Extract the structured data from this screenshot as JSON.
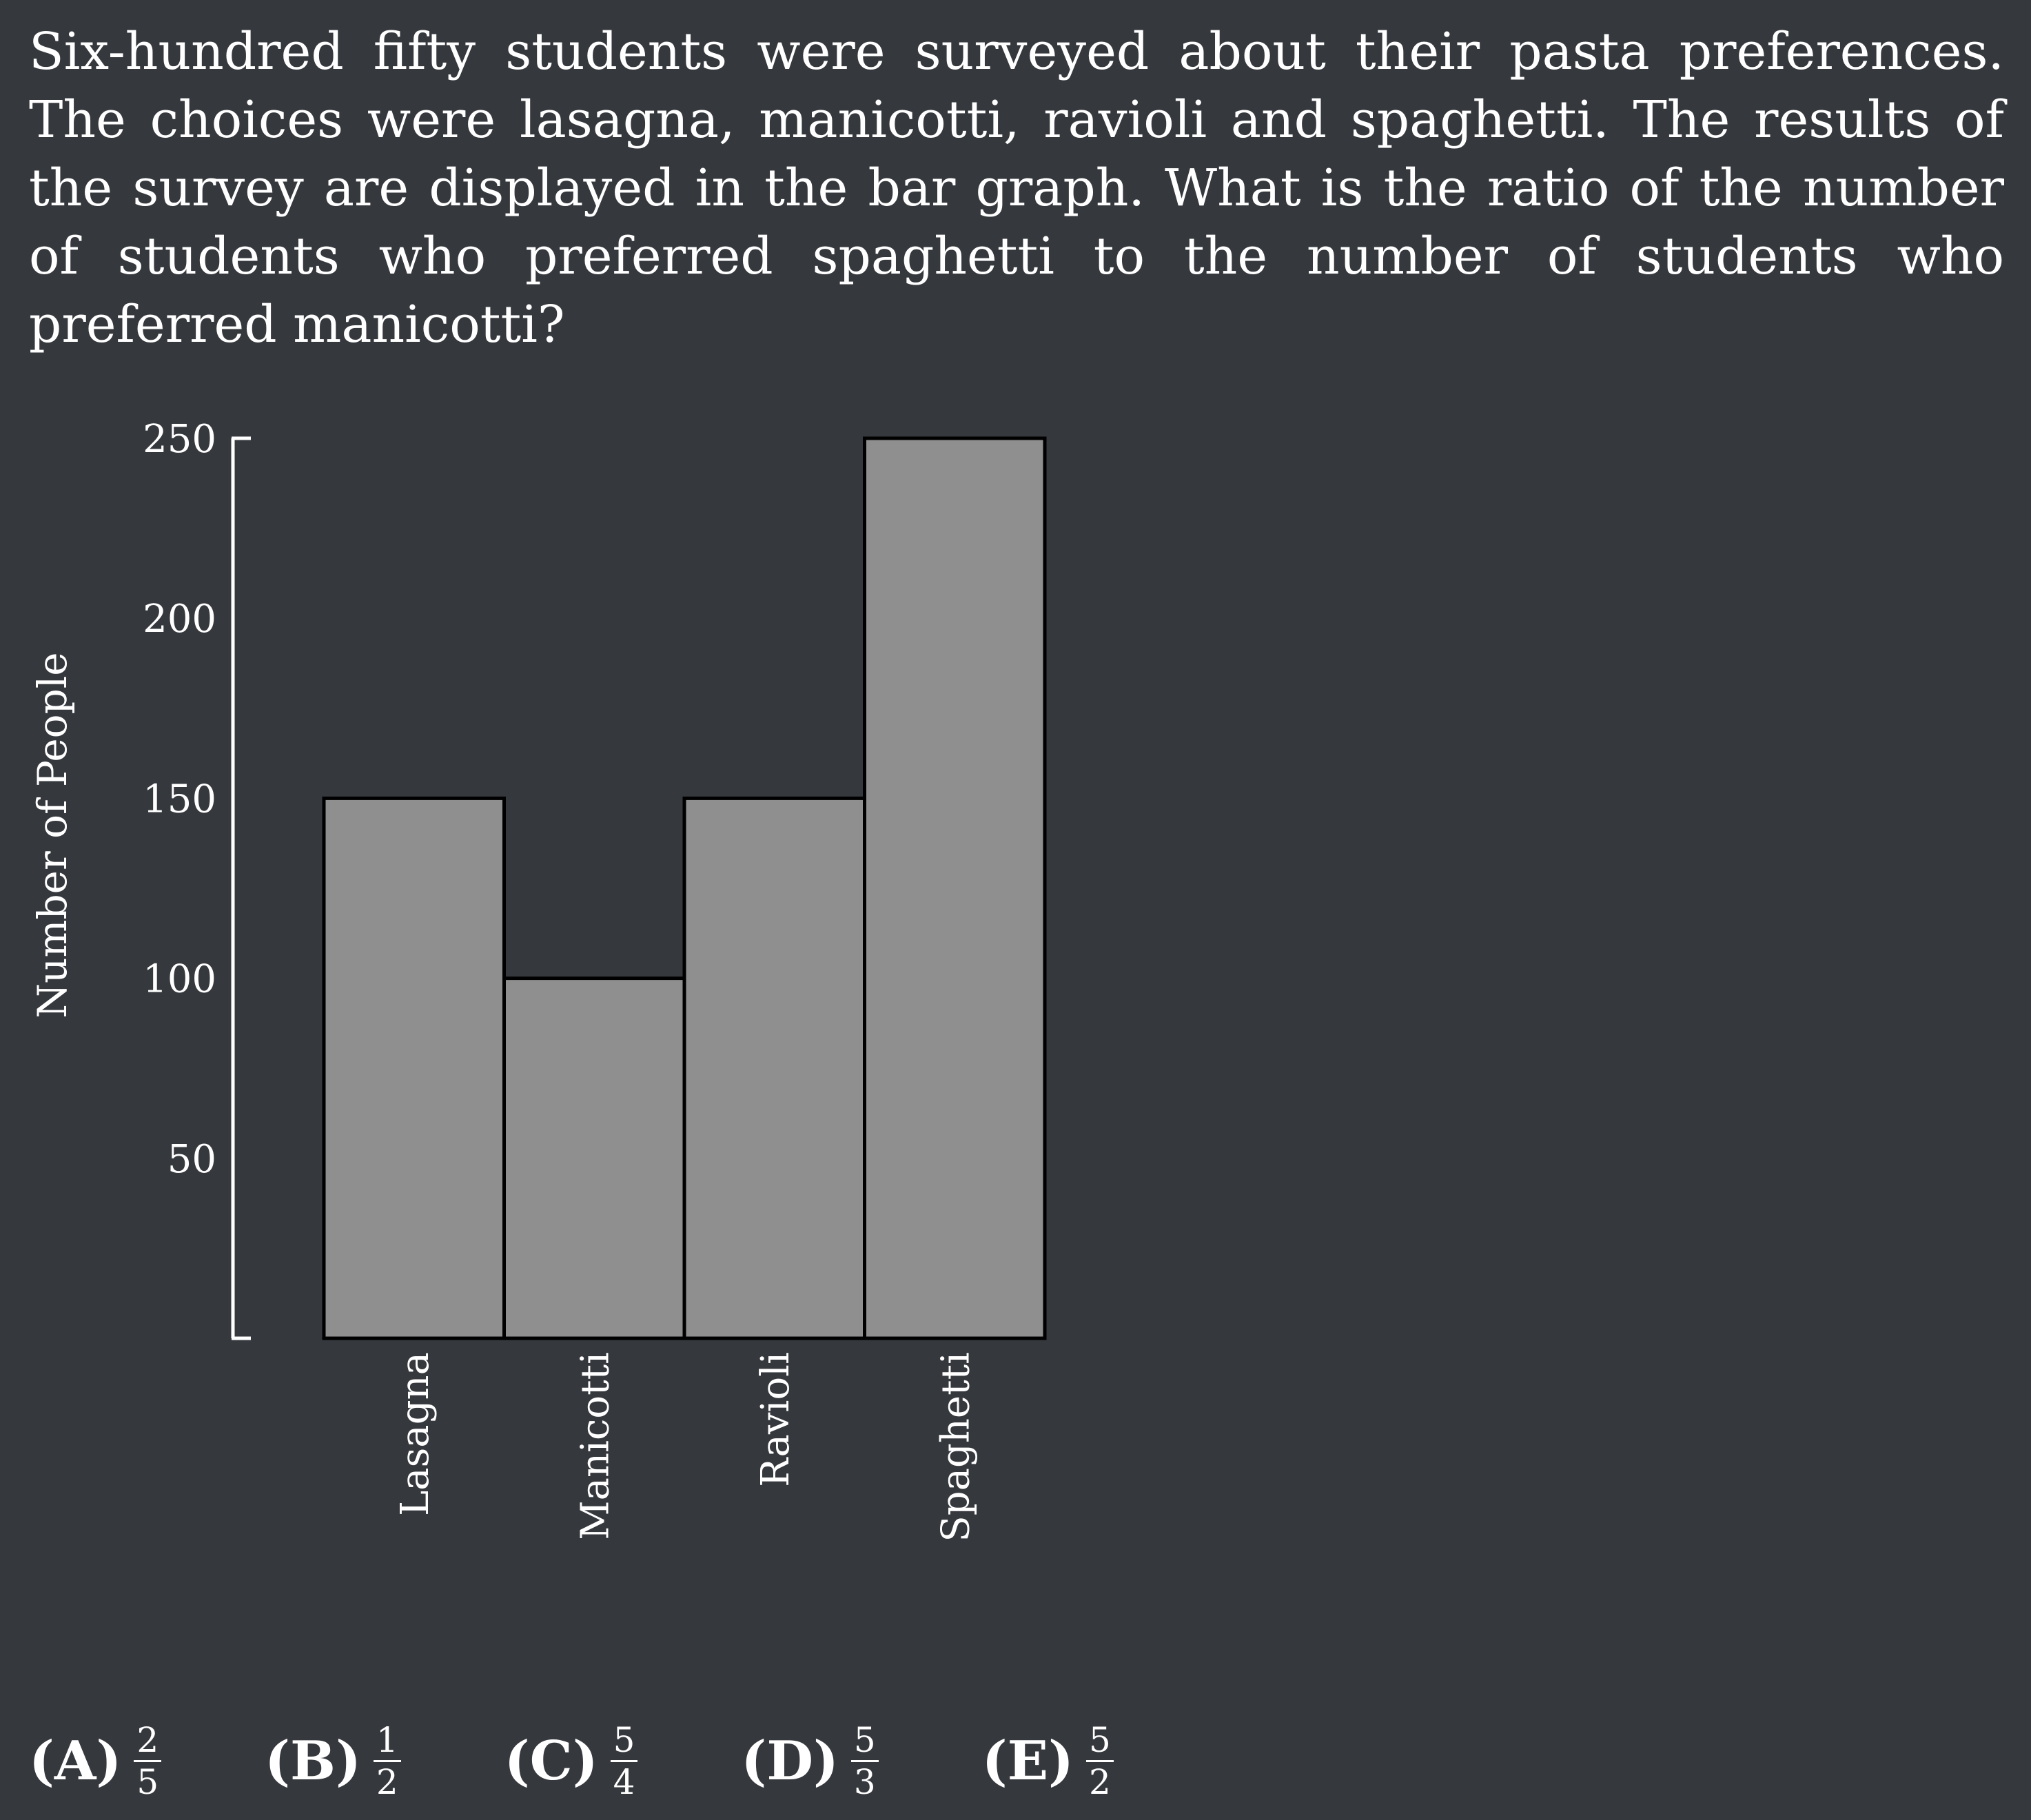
{
  "question": {
    "text": "Six-hundred fifty students were surveyed about their pasta preferences. The choices were lasagna, manicotti, ravioli and spaghetti. The results of the survey are displayed in the bar graph. What is the ratio of the number of students who preferred spaghetti to the number of students who preferred manicotti?"
  },
  "chart_data": {
    "type": "bar",
    "categories": [
      "Lasagna",
      "Manicotti",
      "Ravioli",
      "Spaghetti"
    ],
    "values": [
      150,
      100,
      150,
      250
    ],
    "ylabel": "Number of People",
    "yticks": [
      50,
      100,
      150,
      200,
      250
    ],
    "ylim": [
      0,
      250
    ],
    "grid": false,
    "colors": {
      "bar_fill": "#8f8f8f",
      "bar_stroke": "#000000",
      "axis": "#ffffff",
      "text": "#ffffff"
    }
  },
  "choices": [
    {
      "letter": "(A)",
      "num": "2",
      "den": "5"
    },
    {
      "letter": "(B)",
      "num": "1",
      "den": "2"
    },
    {
      "letter": "(C)",
      "num": "5",
      "den": "4"
    },
    {
      "letter": "(D)",
      "num": "5",
      "den": "3"
    },
    {
      "letter": "(E)",
      "num": "5",
      "den": "2"
    }
  ]
}
